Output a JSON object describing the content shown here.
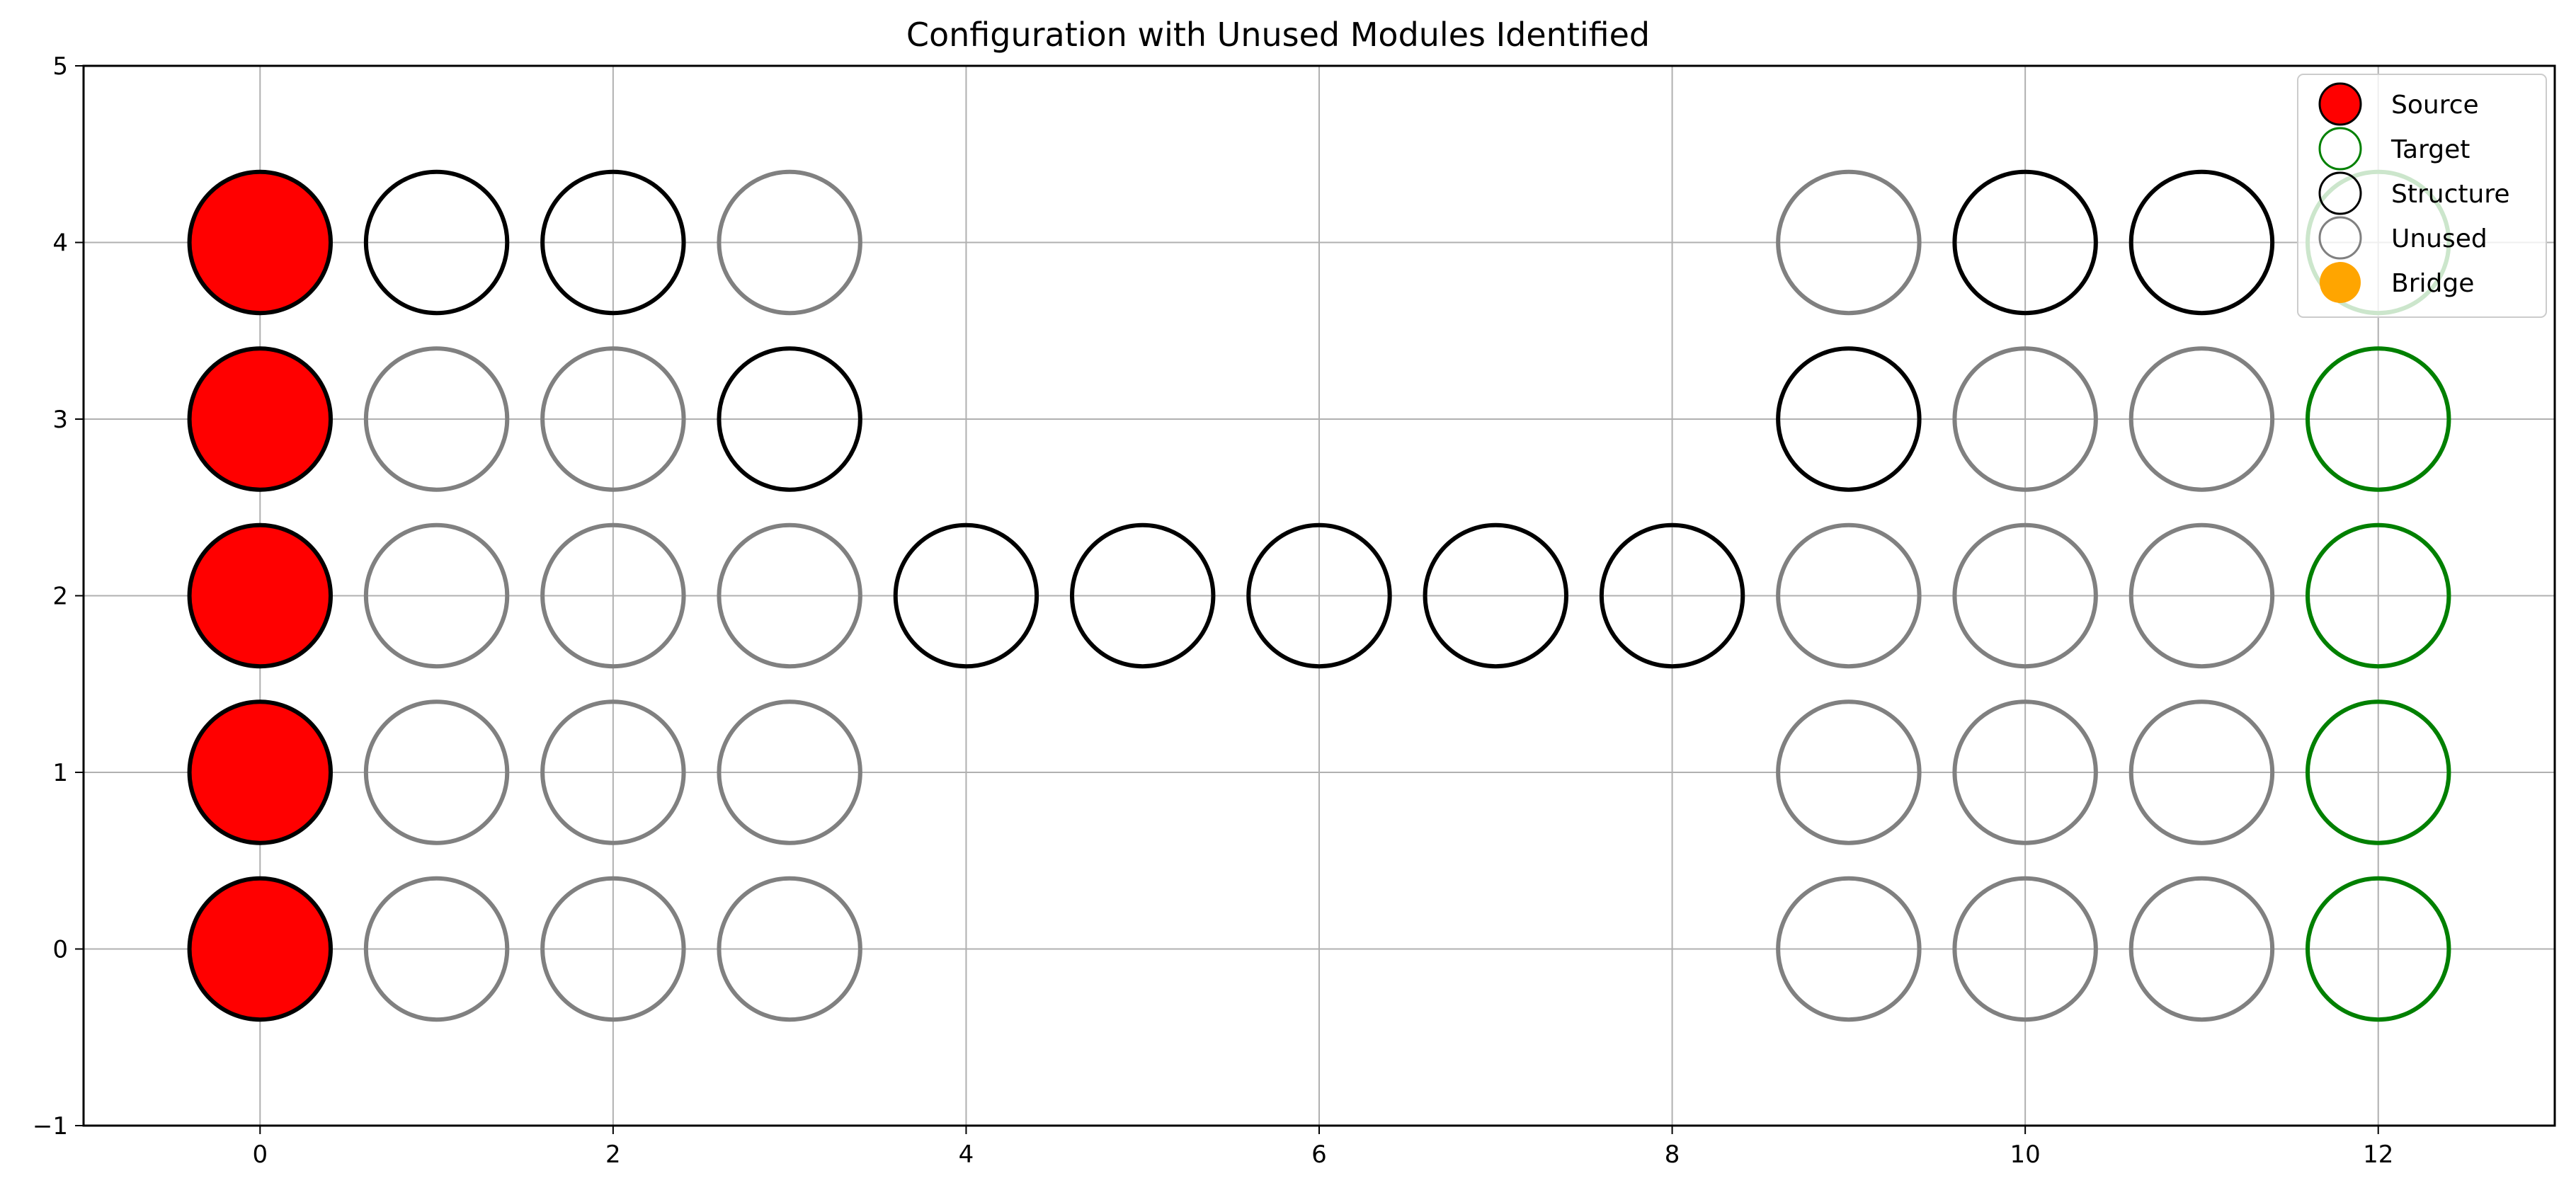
{
  "chart_data": {
    "type": "scatter",
    "title": "Configuration with Unused Modules Identified",
    "xlabel": "",
    "ylabel": "",
    "xlim": [
      -1,
      13
    ],
    "ylim": [
      -1,
      5
    ],
    "xticks": [
      0,
      2,
      4,
      6,
      8,
      10,
      12
    ],
    "yticks": [
      -1,
      0,
      1,
      2,
      3,
      4,
      5
    ],
    "xtick_labels": [
      "0",
      "2",
      "4",
      "6",
      "8",
      "10",
      "12"
    ],
    "ytick_labels": [
      "−1",
      "0",
      "1",
      "2",
      "3",
      "4",
      "5"
    ],
    "grid": true,
    "legend_position": "top-right",
    "marker_radius": 0.4,
    "series": [
      {
        "name": "Source",
        "fill": "#ff0000",
        "edge": "#000000",
        "points": [
          [
            0,
            0
          ],
          [
            0,
            1
          ],
          [
            0,
            2
          ],
          [
            0,
            3
          ],
          [
            0,
            4
          ]
        ]
      },
      {
        "name": "Target",
        "fill": "none",
        "edge": "#008000",
        "points": [
          [
            12,
            0
          ],
          [
            12,
            1
          ],
          [
            12,
            2
          ],
          [
            12,
            3
          ],
          [
            12,
            4
          ]
        ]
      },
      {
        "name": "Structure",
        "fill": "none",
        "edge": "#000000",
        "points": [
          [
            1,
            4
          ],
          [
            2,
            4
          ],
          [
            3,
            3
          ],
          [
            4,
            2
          ],
          [
            5,
            2
          ],
          [
            6,
            2
          ],
          [
            7,
            2
          ],
          [
            8,
            2
          ],
          [
            9,
            3
          ],
          [
            10,
            4
          ],
          [
            11,
            4
          ]
        ]
      },
      {
        "name": "Unused",
        "fill": "none",
        "edge": "#808080",
        "points": [
          [
            1,
            0
          ],
          [
            1,
            1
          ],
          [
            1,
            2
          ],
          [
            1,
            3
          ],
          [
            2,
            0
          ],
          [
            2,
            1
          ],
          [
            2,
            2
          ],
          [
            2,
            3
          ],
          [
            3,
            0
          ],
          [
            3,
            1
          ],
          [
            3,
            2
          ],
          [
            3,
            4
          ],
          [
            9,
            0
          ],
          [
            9,
            1
          ],
          [
            9,
            2
          ],
          [
            9,
            4
          ],
          [
            10,
            0
          ],
          [
            10,
            1
          ],
          [
            10,
            2
          ],
          [
            10,
            3
          ],
          [
            11,
            0
          ],
          [
            11,
            1
          ],
          [
            11,
            2
          ],
          [
            11,
            3
          ]
        ]
      },
      {
        "name": "Bridge",
        "fill": "#ffa500",
        "edge": "none",
        "points": []
      }
    ]
  }
}
